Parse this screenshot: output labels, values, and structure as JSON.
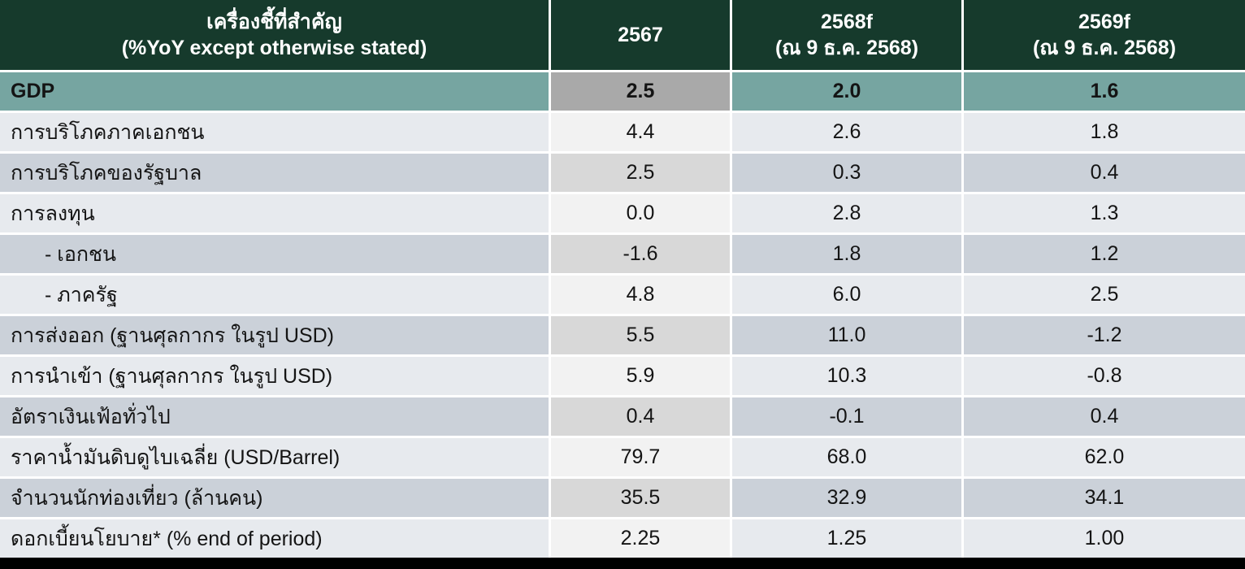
{
  "table": {
    "header": {
      "label_line1": "เครื่องชี้ที่สำคัญ",
      "label_line2": "(%YoY except otherwise stated)",
      "cols": [
        {
          "label": "2567",
          "sub": ""
        },
        {
          "label": "2568f",
          "sub": "(ณ 9 ธ.ค. 2568)"
        },
        {
          "label": "2569f",
          "sub": "(ณ 9 ธ.ค. 2568)"
        }
      ]
    },
    "rows": [
      {
        "label": "GDP",
        "values": [
          "2.5",
          "2.0",
          "1.6"
        ],
        "style": "gdp",
        "indent": false
      },
      {
        "label": "การบริโภคภาคเอกชน",
        "values": [
          "4.4",
          "2.6",
          "1.8"
        ],
        "style": "light",
        "indent": false
      },
      {
        "label": "การบริโภคของรัฐบาล",
        "values": [
          "2.5",
          "0.3",
          "0.4"
        ],
        "style": "dark",
        "indent": false
      },
      {
        "label": "การลงทุน",
        "values": [
          "0.0",
          "2.8",
          "1.3"
        ],
        "style": "light",
        "indent": false
      },
      {
        "label": "- เอกชน",
        "values": [
          "-1.6",
          "1.8",
          "1.2"
        ],
        "style": "dark",
        "indent": true
      },
      {
        "label": "- ภาครัฐ",
        "values": [
          "4.8",
          "6.0",
          "2.5"
        ],
        "style": "light",
        "indent": true
      },
      {
        "label": "การส่งออก (ฐานศุลกากร ในรูป USD)",
        "values": [
          "5.5",
          "11.0",
          "-1.2"
        ],
        "style": "dark",
        "indent": false
      },
      {
        "label": "การนำเข้า (ฐานศุลกากร ในรูป USD)",
        "values": [
          "5.9",
          "10.3",
          "-0.8"
        ],
        "style": "light",
        "indent": false
      },
      {
        "label": "อัตราเงินเฟ้อทั่วไป",
        "values": [
          "0.4",
          "-0.1",
          "0.4"
        ],
        "style": "dark",
        "indent": false
      },
      {
        "label": "ราคาน้ำมันดิบดูไบเฉลี่ย (USD/Barrel)",
        "values": [
          "79.7",
          "68.0",
          "62.0"
        ],
        "style": "light",
        "indent": false
      },
      {
        "label": "จำนวนนักท่องเที่ยว (ล้านคน)",
        "values": [
          "35.5",
          "32.9",
          "34.1"
        ],
        "style": "dark",
        "indent": false
      },
      {
        "label": "ดอกเบี้ยนโยบาย* (% end of period)",
        "values": [
          "2.25",
          "1.25",
          "1.00"
        ],
        "style": "light",
        "indent": false
      }
    ]
  },
  "colors": {
    "header_bg": "#163A2C",
    "header_text": "#FFFFFF",
    "gdp_teal": "#76A5A1",
    "gdp_2567_gray": "#A9A9A9",
    "light_row": "#E7EAEE",
    "light_row_2567": "#F2F2F2",
    "dark_row": "#CBD1D9",
    "dark_row_2567": "#D8D8D8",
    "bottom_bar": "#000000"
  }
}
